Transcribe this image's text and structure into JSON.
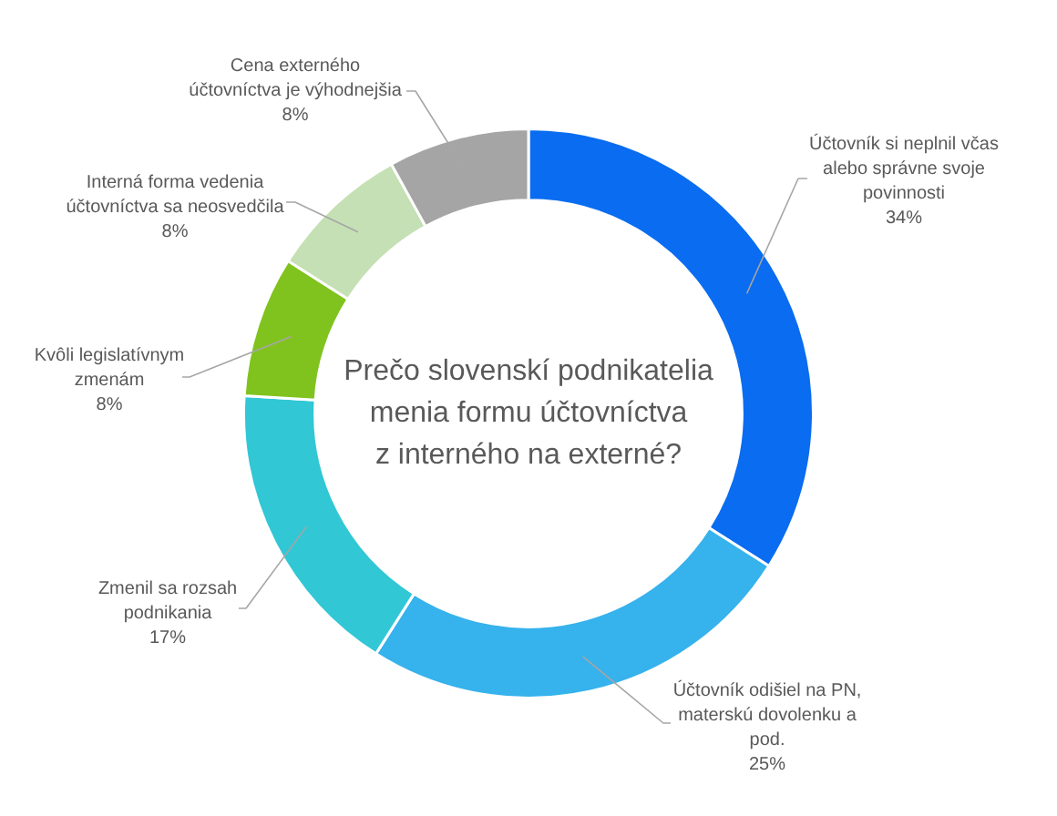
{
  "chart_data": {
    "type": "donut",
    "title": "Prečo slovenskí podnikatelia menia formu účtovníctva z interného na externé?",
    "categories": [
      "Účtovník si neplnil včas alebo správne svoje povinnosti",
      "Účtovník odišiel na PN, materskú dovolenku a pod.",
      "Zmenil sa rozsah podnikania",
      "Kvôli legislatívnym zmenám",
      "Interná forma vedenia účtovníctva sa neosvedčila",
      "Cena externého účtovníctva je výhodnejšia"
    ],
    "values": [
      34,
      25,
      17,
      8,
      8,
      8
    ],
    "colors": [
      "#0a6cf0",
      "#36b2ec",
      "#31c7d5",
      "#80c31e",
      "#c5e0b4",
      "#a5a5a5"
    ],
    "value_labels": [
      "34%",
      "25%",
      "17%",
      "8%",
      "8%",
      "8%"
    ]
  }
}
